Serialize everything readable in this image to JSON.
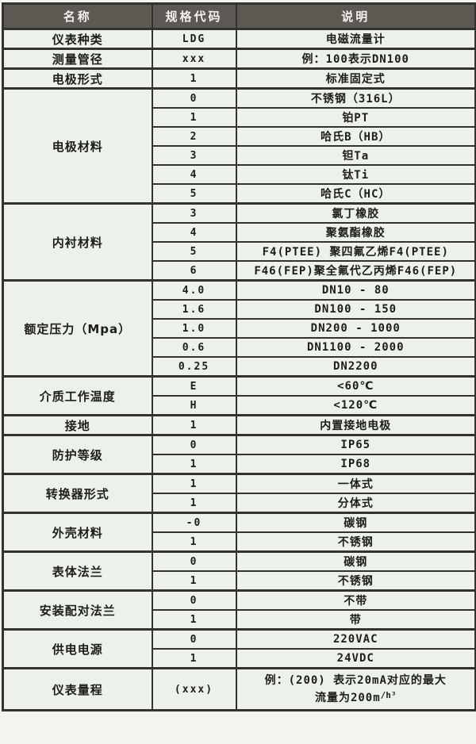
{
  "colors": {
    "header_bg": "#5c5852",
    "header_text": "#f2f1ed",
    "body_bg": "#ecf1ec",
    "border": "#33322c",
    "text": "#1d1d1a"
  },
  "table": {
    "header": {
      "columns": [
        "名称",
        "规格代码",
        "说明"
      ]
    },
    "groups": [
      {
        "name": "仪表种类",
        "rows": [
          {
            "code": "LDG",
            "desc": "电磁流量计"
          }
        ]
      },
      {
        "name": "测量管径",
        "rows": [
          {
            "code": "xxx",
            "desc": "例：100表示DN100"
          }
        ]
      },
      {
        "name": "电极形式",
        "rows": [
          {
            "code": "1",
            "desc": "标准固定式"
          }
        ]
      },
      {
        "name": "电极材料",
        "rows": [
          {
            "code": "0",
            "desc": "不锈钢（316L）"
          },
          {
            "code": "1",
            "desc": "铂PT"
          },
          {
            "code": "2",
            "desc": "哈氏B（HB）"
          },
          {
            "code": "3",
            "desc": "钽Ta"
          },
          {
            "code": "4",
            "desc": "钛Ti"
          },
          {
            "code": "5",
            "desc": "哈氏C（HC）"
          }
        ]
      },
      {
        "name": "内衬材料",
        "rows": [
          {
            "code": "3",
            "desc": "氯丁橡胶"
          },
          {
            "code": "4",
            "desc": "聚氨酯橡胶"
          },
          {
            "code": "5",
            "desc": "F4(PTEE) 聚四氟乙烯F4(PTEE)"
          },
          {
            "code": "6",
            "desc": "F46(FEP)聚全氟代乙丙烯F46(FEP)"
          }
        ]
      },
      {
        "name": "额定压力（Mpa）",
        "rows": [
          {
            "code": "4.0",
            "desc": "DN10 - 80"
          },
          {
            "code": "1.6",
            "desc": "DN100 - 150"
          },
          {
            "code": "1.0",
            "desc": "DN200 - 1000"
          },
          {
            "code": "0.6",
            "desc": "DN1100 - 2000"
          },
          {
            "code": "0.25",
            "desc": "DN2200"
          }
        ]
      },
      {
        "name": "介质工作温度",
        "rows": [
          {
            "code": "E",
            "desc": "<60℃"
          },
          {
            "code": "H",
            "desc": "<120℃"
          }
        ]
      },
      {
        "name": "接地",
        "rows": [
          {
            "code": "1",
            "desc": "内置接地电极"
          }
        ]
      },
      {
        "name": "防护等级",
        "rows": [
          {
            "code": "0",
            "desc": "IP65"
          },
          {
            "code": "1",
            "desc": "IP68"
          }
        ]
      },
      {
        "name": "转换器形式",
        "rows": [
          {
            "code": "1",
            "desc": "一体式"
          },
          {
            "code": "1",
            "desc": "分体式"
          }
        ]
      },
      {
        "name": "外壳材料",
        "rows": [
          {
            "code": "-0",
            "desc": "碳钢"
          },
          {
            "code": "1",
            "desc": "不锈钢"
          }
        ]
      },
      {
        "name": "表体法兰",
        "rows": [
          {
            "code": "0",
            "desc": "碳钢"
          },
          {
            "code": "1",
            "desc": "不锈钢"
          }
        ]
      },
      {
        "name": "安装配对法兰",
        "rows": [
          {
            "code": "0",
            "desc": "不带"
          },
          {
            "code": "1",
            "desc": "带"
          }
        ]
      },
      {
        "name": "供电电源",
        "rows": [
          {
            "code": "0",
            "desc": "220VAC"
          },
          {
            "code": "1",
            "desc": "24VDC"
          }
        ]
      },
      {
        "name": "仪表量程",
        "rows": [
          {
            "code": "(xxx)",
            "desc_l1": "例：(200) 表示20mA对应的最大",
            "desc_l2a": "流量为200m",
            "desc_l2b": "/h³"
          }
        ]
      }
    ]
  }
}
